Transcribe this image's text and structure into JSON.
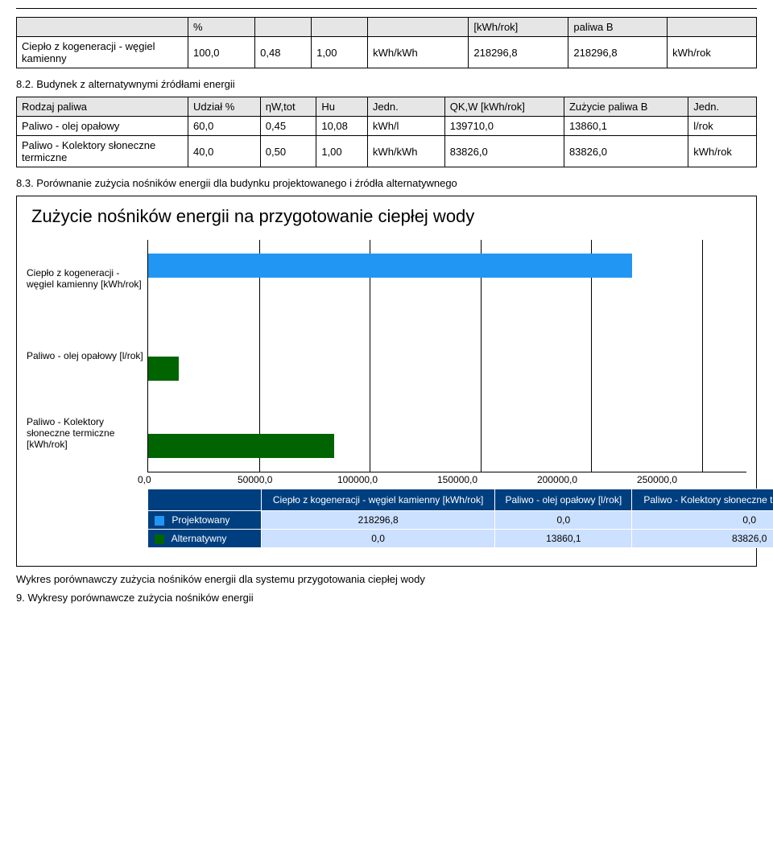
{
  "table1": {
    "headers": [
      "",
      "%",
      "",
      "",
      "",
      "[kWh/rok]",
      "paliwa B",
      ""
    ],
    "row": {
      "label": "Ciepło z kogeneracji - węgiel kamienny",
      "c1": "100,0",
      "c2": "0,48",
      "c3": "1,00",
      "c4": "kWh/kWh",
      "c5": "218296,8",
      "c6": "218296,8",
      "c7": "kWh/rok"
    }
  },
  "section82": "8.2. Budynek z alternatywnymi źródłami energii",
  "table2": {
    "headers": [
      "Rodzaj paliwa",
      "Udział %",
      "ηW,tot",
      "Hu",
      "Jedn.",
      "QK,W [kWh/rok]",
      "Zużycie paliwa B",
      "Jedn."
    ],
    "rows": [
      {
        "c0": "Paliwo - olej opałowy",
        "c1": "60,0",
        "c2": "0,45",
        "c3": "10,08",
        "c4": "kWh/l",
        "c5": "139710,0",
        "c6": "13860,1",
        "c7": "l/rok"
      },
      {
        "c0": "Paliwo - Kolektory słoneczne termiczne",
        "c1": "40,0",
        "c2": "0,50",
        "c3": "1,00",
        "c4": "kWh/kWh",
        "c5": "83826,0",
        "c6": "83826,0",
        "c7": "kWh/rok"
      }
    ]
  },
  "section83": "8.3. Porównanie zużycia nośników energii dla budynku projektowanego i źródła alternatywnego",
  "chart": {
    "title": "Zużycie nośników energii na przygotowanie ciepłej wody",
    "ylabels": [
      "Ciepło z kogeneracji - węgiel kamienny [kWh/rok]",
      "Paliwo - olej opałowy [l/rok]",
      "Paliwo - Kolektory słoneczne termiczne [kWh/rok]"
    ],
    "xmax": 270000,
    "xticks": [
      "0,0",
      "50000,0",
      "100000,0",
      "150000,0",
      "200000,0",
      "250000,0"
    ],
    "series": [
      {
        "name": "Projektowany",
        "color": "#2196f3",
        "values": [
          218296.8,
          0,
          0
        ]
      },
      {
        "name": "Alternatywny",
        "color": "#006400",
        "values": [
          0,
          13860.1,
          83826.0
        ]
      }
    ],
    "legend": {
      "columns": [
        "Ciepło z kogeneracji - węgiel kamienny [kWh/rok]",
        "Paliwo - olej opałowy [l/rok]",
        "Paliwo - Kolektory słoneczne termiczne [kWh/rok]"
      ],
      "rows": [
        {
          "name": "Projektowany",
          "swatch": "#2196f3",
          "vals": [
            "218296,8",
            "0,0",
            "0,0"
          ]
        },
        {
          "name": "Alternatywny",
          "swatch": "#006400",
          "vals": [
            "0,0",
            "13860,1",
            "83826,0"
          ]
        }
      ]
    }
  },
  "caption": "Wykres porównawczy zużycia nośników energii dla systemu przygotowania ciepłej wody",
  "section9": "9. Wykresy porównawcze zużycia nośników energii"
}
